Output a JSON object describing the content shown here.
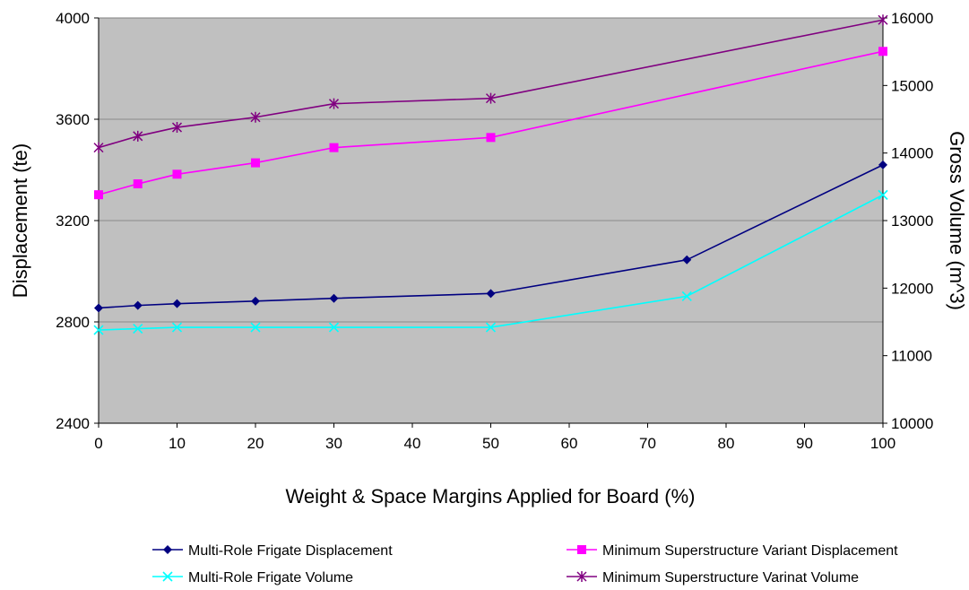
{
  "chart_data": {
    "type": "line",
    "xlabel": "Weight & Space Margins Applied for Board (%)",
    "ylabel": "Displacement (te)",
    "y2label": "Gross Volume (m^3)",
    "xlim": [
      0,
      100
    ],
    "ylim": [
      2400,
      4000
    ],
    "y2lim": [
      10000,
      16000
    ],
    "x_ticks": [
      0,
      10,
      20,
      30,
      40,
      50,
      60,
      70,
      80,
      90,
      100
    ],
    "y_ticks": [
      2400,
      2800,
      3200,
      3600,
      4000
    ],
    "y2_ticks": [
      10000,
      11000,
      12000,
      13000,
      14000,
      15000,
      16000
    ],
    "grid": "horizontal",
    "legend_position": "bottom",
    "plot_background": "#c0c0c0",
    "series": [
      {
        "name": "Multi-Role Frigate Displacement",
        "axis": "left",
        "color": "#000080",
        "marker": "diamond",
        "x": [
          0,
          5,
          10,
          20,
          30,
          50,
          75,
          100
        ],
        "values": [
          2855,
          2865,
          2872,
          2882,
          2893,
          2912,
          3045,
          3420
        ]
      },
      {
        "name": "Minimum Superstructure Variant Displacement",
        "axis": "left",
        "color": "#ff00ff",
        "marker": "square",
        "x": [
          0,
          5,
          10,
          20,
          30,
          50,
          100
        ],
        "values": [
          3302,
          3345,
          3383,
          3428,
          3488,
          3528,
          3868
        ]
      },
      {
        "name": "Multi-Role Frigate Volume",
        "axis": "right",
        "color": "#00ffff",
        "marker": "x",
        "x": [
          0,
          5,
          10,
          20,
          30,
          50,
          75,
          100
        ],
        "values": [
          11380,
          11400,
          11420,
          11420,
          11420,
          11420,
          11880,
          13380
        ]
      },
      {
        "name": "Minimum Superstructure Varinat Volume",
        "axis": "right",
        "color": "#800080",
        "marker": "star",
        "x": [
          0,
          5,
          10,
          20,
          30,
          50,
          100
        ],
        "values": [
          14080,
          14250,
          14380,
          14530,
          14730,
          14810,
          15970
        ]
      }
    ]
  }
}
